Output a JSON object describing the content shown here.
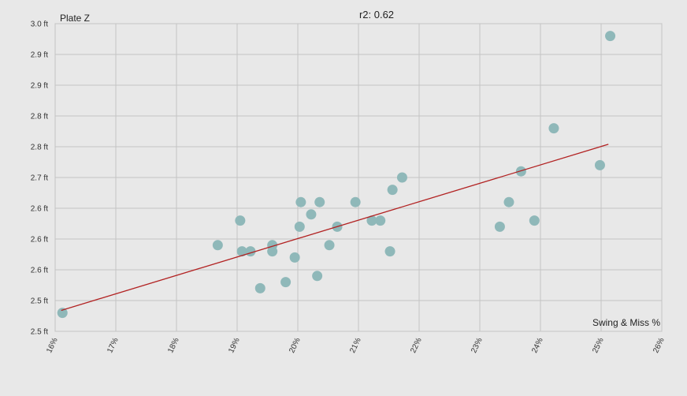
{
  "chart_data": {
    "type": "scatter",
    "title": "r2: 0.62",
    "ylabel": "Plate Z",
    "xlabel": "Swing & Miss %",
    "xlim": [
      16,
      26
    ],
    "ylim": [
      2.5,
      3.0
    ],
    "x_ticks": [
      "16%",
      "17%",
      "18%",
      "19%",
      "20%",
      "21%",
      "22%",
      "23%",
      "24%",
      "25%",
      "26%"
    ],
    "y_ticks": [
      "2.5 ft",
      "2.5 ft",
      "2.6 ft",
      "2.6 ft",
      "2.6 ft",
      "2.7 ft",
      "2.8 ft",
      "2.8 ft",
      "2.9 ft",
      "2.9 ft",
      "3.0 ft"
    ],
    "grid": true,
    "point_color": "#8fb8b9",
    "trend_color": "#b22222",
    "points": [
      {
        "x": 16.12,
        "y": 2.53
      },
      {
        "x": 18.68,
        "y": 2.64
      },
      {
        "x": 19.05,
        "y": 2.68
      },
      {
        "x": 19.08,
        "y": 2.63
      },
      {
        "x": 19.22,
        "y": 2.63
      },
      {
        "x": 19.38,
        "y": 2.57
      },
      {
        "x": 19.58,
        "y": 2.64
      },
      {
        "x": 19.58,
        "y": 2.63
      },
      {
        "x": 19.8,
        "y": 2.58
      },
      {
        "x": 19.95,
        "y": 2.62
      },
      {
        "x": 20.03,
        "y": 2.67
      },
      {
        "x": 20.05,
        "y": 2.71
      },
      {
        "x": 20.22,
        "y": 2.69
      },
      {
        "x": 20.32,
        "y": 2.59
      },
      {
        "x": 20.36,
        "y": 2.71
      },
      {
        "x": 20.52,
        "y": 2.64
      },
      {
        "x": 20.65,
        "y": 2.67
      },
      {
        "x": 20.95,
        "y": 2.71
      },
      {
        "x": 21.22,
        "y": 2.68
      },
      {
        "x": 21.36,
        "y": 2.68
      },
      {
        "x": 21.52,
        "y": 2.63
      },
      {
        "x": 21.56,
        "y": 2.73
      },
      {
        "x": 21.72,
        "y": 2.75
      },
      {
        "x": 23.33,
        "y": 2.67
      },
      {
        "x": 23.48,
        "y": 2.71
      },
      {
        "x": 23.68,
        "y": 2.76
      },
      {
        "x": 23.9,
        "y": 2.68
      },
      {
        "x": 24.22,
        "y": 2.83
      },
      {
        "x": 24.98,
        "y": 2.77
      },
      {
        "x": 25.15,
        "y": 2.98
      }
    ],
    "trend": {
      "x0": 16.1,
      "y0": 2.534,
      "x1": 25.12,
      "y1": 2.804
    }
  }
}
